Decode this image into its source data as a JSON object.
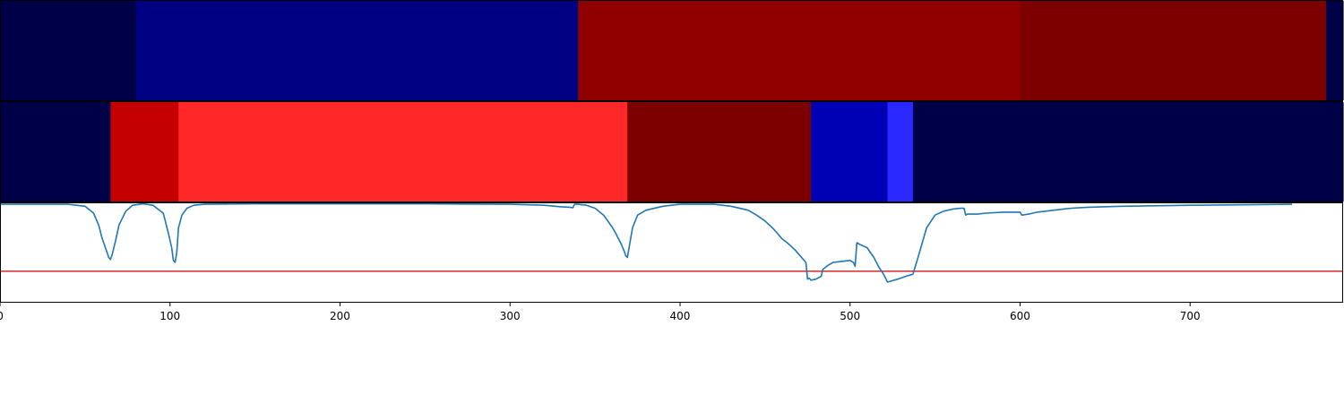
{
  "chart_data": {
    "type": "heatmap",
    "xlim": [
      0,
      790
    ],
    "x_ticks": [
      0,
      100,
      200,
      300,
      400,
      500,
      600,
      700
    ],
    "tick_labels": [
      "0",
      "100",
      "200",
      "300",
      "400",
      "500",
      "600",
      "700"
    ],
    "grid": false,
    "legend": "none",
    "heatmap_rows": [
      {
        "segments": [
          {
            "start": 0,
            "end": 80,
            "color": "#000048"
          },
          {
            "start": 80,
            "end": 340,
            "color": "#000082"
          },
          {
            "start": 340,
            "end": 600,
            "color": "#900000"
          },
          {
            "start": 600,
            "end": 780,
            "color": "#7c0000"
          },
          {
            "start": 780,
            "end": 790,
            "color": "#000048"
          }
        ]
      },
      {
        "segments": [
          {
            "start": 0,
            "end": 65,
            "color": "#000048"
          },
          {
            "start": 65,
            "end": 105,
            "color": "#c40000"
          },
          {
            "start": 105,
            "end": 369,
            "color": "#ff2828"
          },
          {
            "start": 369,
            "end": 477,
            "color": "#7c0000"
          },
          {
            "start": 477,
            "end": 522,
            "color": "#0000b4"
          },
          {
            "start": 522,
            "end": 537,
            "color": "#2828ff"
          },
          {
            "start": 537,
            "end": 790,
            "color": "#000048"
          }
        ]
      }
    ],
    "line_panel": {
      "ylim": [
        0,
        1
      ],
      "threshold": 0.31,
      "threshold_color": "#d62728",
      "line_color": "#1f77b4",
      "x": [
        0,
        40,
        50,
        55,
        58,
        60,
        62,
        64,
        65,
        66,
        68,
        70,
        74,
        78,
        84,
        90,
        96,
        99,
        101,
        102,
        103,
        104,
        105,
        107,
        110,
        114,
        120,
        150,
        200,
        250,
        300,
        320,
        330,
        335,
        337,
        338,
        340,
        345,
        350,
        355,
        360,
        362,
        365,
        367,
        368,
        369,
        370,
        372,
        375,
        380,
        390,
        400,
        420,
        430,
        440,
        445,
        450,
        455,
        460,
        463,
        465,
        468,
        470,
        472,
        474,
        475,
        476,
        477,
        480,
        483,
        484,
        487,
        490,
        495,
        500,
        502,
        503,
        504,
        506,
        510,
        514,
        517,
        519,
        520,
        522,
        524,
        528,
        533,
        537,
        540,
        545,
        550,
        555,
        560,
        565,
        567,
        568,
        569,
        575,
        580,
        590,
        600,
        601,
        605,
        610,
        615,
        620,
        625,
        630,
        640,
        660,
        700,
        760
      ],
      "y": [
        0.99,
        0.99,
        0.97,
        0.9,
        0.78,
        0.65,
        0.55,
        0.45,
        0.43,
        0.48,
        0.62,
        0.78,
        0.92,
        0.98,
        0.995,
        0.98,
        0.9,
        0.7,
        0.55,
        0.42,
        0.4,
        0.5,
        0.75,
        0.88,
        0.95,
        0.98,
        0.99,
        0.995,
        0.995,
        0.995,
        0.99,
        0.98,
        0.965,
        0.96,
        0.955,
        0.99,
        0.99,
        0.98,
        0.95,
        0.88,
        0.76,
        0.7,
        0.6,
        0.52,
        0.47,
        0.45,
        0.55,
        0.75,
        0.88,
        0.93,
        0.97,
        0.99,
        0.99,
        0.97,
        0.93,
        0.88,
        0.82,
        0.74,
        0.64,
        0.6,
        0.57,
        0.52,
        0.48,
        0.44,
        0.4,
        0.23,
        0.24,
        0.22,
        0.23,
        0.26,
        0.33,
        0.37,
        0.4,
        0.41,
        0.42,
        0.4,
        0.36,
        0.6,
        0.58,
        0.55,
        0.45,
        0.35,
        0.3,
        0.27,
        0.2,
        0.21,
        0.23,
        0.26,
        0.28,
        0.45,
        0.75,
        0.88,
        0.92,
        0.94,
        0.95,
        0.95,
        0.88,
        0.89,
        0.89,
        0.9,
        0.91,
        0.91,
        0.88,
        0.89,
        0.91,
        0.92,
        0.93,
        0.94,
        0.95,
        0.96,
        0.97,
        0.98,
        0.99
      ]
    }
  }
}
